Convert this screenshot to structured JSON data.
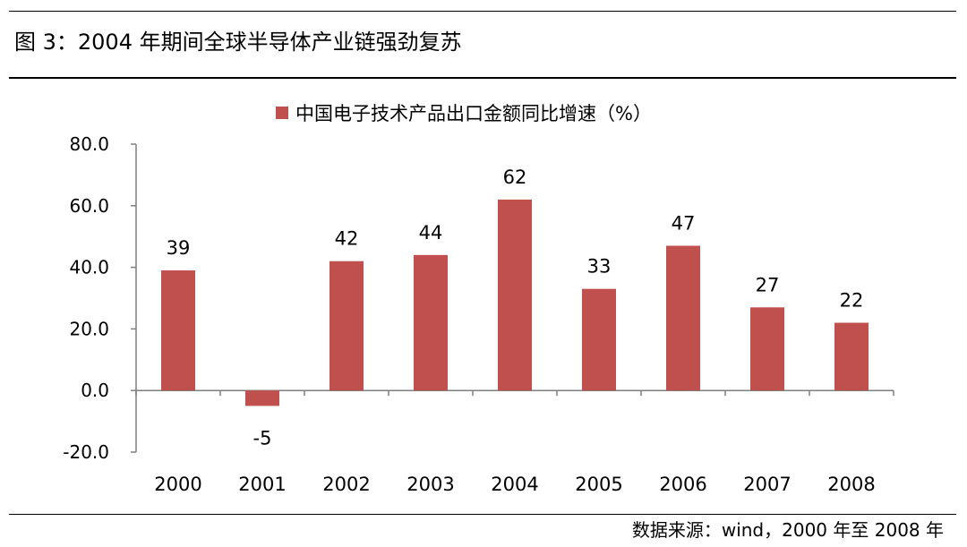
{
  "figure": {
    "title": "图 3：2004 年期间全球半导体产业链强劲复苏",
    "source": "数据来源：wind，2000 年至 2008 年"
  },
  "chart_data": {
    "type": "bar",
    "categories": [
      "2000",
      "2001",
      "2002",
      "2003",
      "2004",
      "2005",
      "2006",
      "2007",
      "2008"
    ],
    "series": [
      {
        "name": "中国电子技术产品出口金额同比增速（%）",
        "values": [
          39,
          -5,
          42,
          44,
          62,
          33,
          47,
          27,
          22
        ],
        "data_labels": [
          "39",
          "-5",
          "42",
          "44",
          "62",
          "33",
          "47",
          "27",
          "22"
        ],
        "color": "#c0504d"
      }
    ],
    "yaxis": {
      "ylim": [
        -20,
        80
      ],
      "ticks": [
        80,
        60,
        40,
        20,
        0,
        -20
      ],
      "tick_labels": [
        "80.0",
        "60.0",
        "40.0",
        "20.0",
        "0.0",
        "-20.0"
      ]
    },
    "legend": "top-center",
    "grid": false,
    "axis_color": "#7f7f7f"
  }
}
